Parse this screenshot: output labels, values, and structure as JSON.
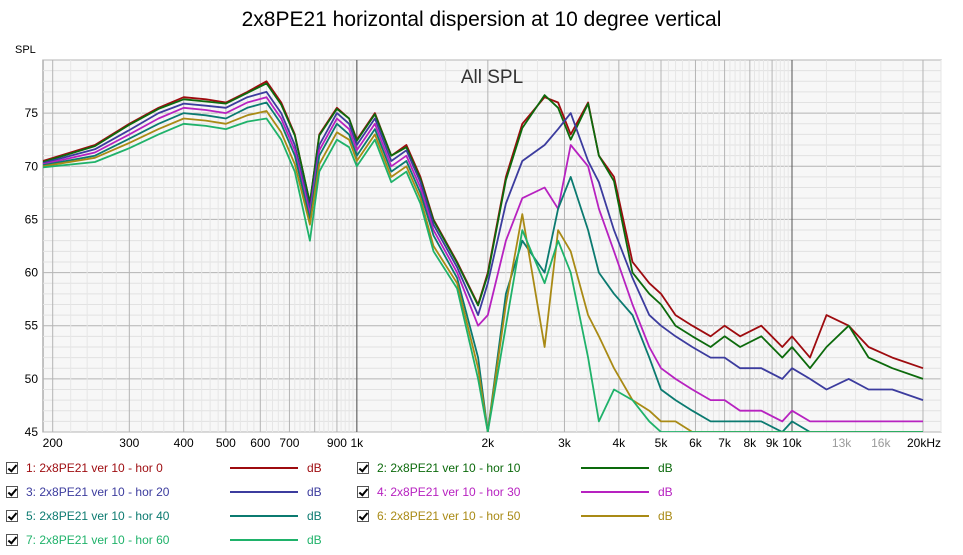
{
  "chart_data": {
    "type": "line",
    "title": "2x8PE21 horizontal dispersion at 10 degree vertical",
    "annotation": "All SPL",
    "ylabel": "SPL",
    "xunit": "Hz",
    "xscale": "log",
    "xlim": [
      190,
      22000
    ],
    "ylim": [
      45,
      80
    ],
    "grid": true,
    "legend_position": "bottom",
    "y_ticks": [
      45,
      50,
      55,
      60,
      65,
      70,
      75
    ],
    "x_tick_labels": [
      {
        "v": 200,
        "t": "200"
      },
      {
        "v": 300,
        "t": "300"
      },
      {
        "v": 400,
        "t": "400"
      },
      {
        "v": 500,
        "t": "500"
      },
      {
        "v": 600,
        "t": "600"
      },
      {
        "v": 700,
        "t": "700"
      },
      {
        "v": 900,
        "t": "900"
      },
      {
        "v": 1000,
        "t": "1k"
      },
      {
        "v": 2000,
        "t": "2k"
      },
      {
        "v": 3000,
        "t": "3k"
      },
      {
        "v": 4000,
        "t": "4k"
      },
      {
        "v": 5000,
        "t": "5k"
      },
      {
        "v": 6000,
        "t": "6k"
      },
      {
        "v": 7000,
        "t": "7k"
      },
      {
        "v": 8000,
        "t": "8k"
      },
      {
        "v": 9000,
        "t": "9k"
      },
      {
        "v": 10000,
        "t": "10k"
      },
      {
        "v": 13000,
        "t": "13k",
        "muted": true
      },
      {
        "v": 16000,
        "t": "16k",
        "muted": true
      },
      {
        "v": 20000,
        "t": "20kHz"
      }
    ],
    "series": [
      {
        "name": "1: 2x8PE21 ver 10 - hor 0",
        "unit": "dB",
        "color": "#9e0b0f",
        "x": [
          190,
          250,
          300,
          350,
          400,
          450,
          500,
          560,
          620,
          670,
          720,
          780,
          820,
          900,
          960,
          1000,
          1100,
          1200,
          1300,
          1400,
          1500,
          1700,
          1900,
          2000,
          2200,
          2400,
          2700,
          2900,
          3100,
          3400,
          3600,
          3900,
          4300,
          4700,
          5000,
          5400,
          5900,
          6500,
          7000,
          7600,
          8500,
          9500,
          10000,
          11000,
          12000,
          13500,
          15000,
          17000,
          20000
        ],
        "y": [
          70.5,
          72,
          74,
          75.5,
          76.5,
          76.3,
          76,
          77,
          78,
          76,
          73,
          66.5,
          73,
          75.5,
          74.5,
          72.5,
          75,
          71,
          72,
          69,
          65,
          61,
          57,
          60,
          69,
          74,
          76.5,
          76,
          73,
          76,
          71,
          69,
          61,
          59,
          58,
          56,
          55,
          54,
          55,
          54,
          55,
          53,
          54,
          52,
          56,
          55,
          53,
          52,
          51
        ]
      },
      {
        "name": "2: 2x8PE21 ver 10 - hor 10",
        "unit": "dB",
        "color": "#0c6a0c",
        "x": [
          190,
          250,
          300,
          350,
          400,
          450,
          500,
          560,
          620,
          670,
          720,
          780,
          820,
          900,
          960,
          1000,
          1100,
          1200,
          1300,
          1400,
          1500,
          1700,
          1900,
          2000,
          2200,
          2400,
          2700,
          2900,
          3100,
          3400,
          3600,
          3900,
          4300,
          4700,
          5000,
          5400,
          5900,
          6500,
          7000,
          7600,
          8500,
          9500,
          10000,
          11000,
          12000,
          13500,
          15000,
          17000,
          20000
        ],
        "y": [
          70.4,
          71.9,
          73.9,
          75.4,
          76.3,
          76.1,
          75.9,
          76.9,
          77.8,
          75.8,
          72.9,
          66.6,
          72.9,
          75.4,
          74.5,
          72.4,
          74.9,
          71,
          71.8,
          68.8,
          64.9,
          60.9,
          56.9,
          59.8,
          68.7,
          73.6,
          76.7,
          75.5,
          72.5,
          75.9,
          71,
          68.6,
          60,
          58,
          57,
          55,
          54,
          53,
          54,
          53,
          54,
          52,
          53,
          51,
          53,
          55,
          52,
          51,
          50
        ]
      },
      {
        "name": "3: 2x8PE21 ver 10 - hor 20",
        "unit": "dB",
        "color": "#3c3c9e",
        "x": [
          190,
          250,
          300,
          350,
          400,
          450,
          500,
          560,
          620,
          670,
          720,
          780,
          820,
          900,
          960,
          1000,
          1100,
          1200,
          1300,
          1400,
          1500,
          1700,
          1900,
          2000,
          2200,
          2400,
          2700,
          2900,
          3100,
          3400,
          3600,
          3900,
          4300,
          4700,
          5000,
          5400,
          5900,
          6500,
          7000,
          7600,
          8500,
          9500,
          10000,
          11000,
          12000,
          13500,
          15000,
          17000,
          20000
        ],
        "y": [
          70.3,
          71.6,
          73.4,
          75,
          75.9,
          75.7,
          75.5,
          76.5,
          77,
          75,
          72,
          66,
          72,
          75,
          74,
          72,
          74.5,
          70.5,
          71.5,
          68.5,
          64.5,
          60.5,
          56,
          59,
          66.5,
          70.5,
          72,
          73.5,
          75,
          70.5,
          68.5,
          64,
          59.5,
          56,
          55,
          54,
          53,
          52,
          52,
          51,
          51,
          50,
          51,
          50,
          49,
          50,
          49,
          49,
          48
        ]
      },
      {
        "name": "4: 2x8PE21 ver 10 - hor 30",
        "unit": "dB",
        "color": "#b722c0",
        "x": [
          190,
          250,
          300,
          350,
          400,
          450,
          500,
          560,
          620,
          670,
          720,
          780,
          820,
          900,
          960,
          1000,
          1100,
          1200,
          1300,
          1400,
          1500,
          1700,
          1900,
          2000,
          2200,
          2400,
          2700,
          2900,
          3100,
          3400,
          3600,
          3900,
          4300,
          4700,
          5000,
          5400,
          5900,
          6500,
          7000,
          7600,
          8500,
          9500,
          10000,
          11000,
          12000,
          13500,
          15000,
          17000,
          20000
        ],
        "y": [
          70.2,
          71.3,
          73,
          74.5,
          75.5,
          75.3,
          75,
          76,
          76.5,
          74.5,
          71.5,
          65.5,
          71.5,
          74.5,
          73.5,
          71.5,
          74,
          70,
          71,
          68,
          64,
          60,
          55,
          56,
          63,
          67,
          68,
          66,
          72,
          70,
          66,
          62,
          57,
          53,
          51,
          50,
          49,
          48,
          48,
          47,
          47,
          46,
          47,
          46,
          46,
          46,
          46,
          46,
          46
        ]
      },
      {
        "name": "5: 2x8PE21 ver 10 - hor 40",
        "unit": "dB",
        "color": "#0b7a70",
        "x": [
          190,
          250,
          300,
          350,
          400,
          450,
          500,
          560,
          620,
          670,
          720,
          780,
          820,
          900,
          960,
          1000,
          1100,
          1200,
          1300,
          1400,
          1500,
          1700,
          1900,
          2000,
          2200,
          2400,
          2700,
          2900,
          3100,
          3400,
          3600,
          3900,
          4300,
          4700,
          5000,
          5400,
          5900,
          6500,
          7000,
          7600,
          8500,
          9500,
          10000,
          11000,
          12000,
          13500,
          15000,
          17000,
          20000
        ],
        "y": [
          70.1,
          71,
          72.6,
          74,
          75,
          74.8,
          74.5,
          75.5,
          76,
          74,
          71,
          65,
          71,
          74,
          73,
          71,
          73.5,
          69.5,
          70.5,
          67.5,
          63.5,
          59.5,
          52,
          45,
          58,
          63,
          60,
          66,
          69,
          64,
          60,
          58,
          56,
          52,
          49,
          48,
          47,
          46,
          46,
          46,
          46,
          45,
          46,
          45,
          45,
          45,
          45,
          45,
          45
        ]
      },
      {
        "name": "6: 2x8PE21 ver 10 - hor 50",
        "unit": "dB",
        "color": "#a98a15",
        "x": [
          190,
          250,
          300,
          350,
          400,
          450,
          500,
          560,
          620,
          670,
          720,
          780,
          820,
          900,
          960,
          1000,
          1100,
          1200,
          1300,
          1400,
          1500,
          1700,
          1900,
          2000,
          2200,
          2400,
          2700,
          2900,
          3100,
          3400,
          3600,
          3900,
          4300,
          4700,
          5000,
          5400,
          5900,
          6500,
          7000,
          7600,
          8500,
          9500,
          10000,
          11000,
          12000,
          13500,
          15000,
          17000,
          20000
        ],
        "y": [
          70,
          70.8,
          72.2,
          73.5,
          74.5,
          74.3,
          74,
          74.8,
          75.2,
          73.2,
          70.2,
          64.5,
          70.2,
          73.2,
          72.5,
          70.5,
          73,
          69,
          70,
          67,
          62.5,
          59,
          51,
          45,
          57,
          65.5,
          53,
          64,
          62,
          56,
          54,
          51,
          48,
          47,
          46,
          46,
          45,
          45,
          45,
          45,
          45,
          45,
          45,
          45,
          45,
          45,
          45,
          45,
          45
        ]
      },
      {
        "name": "7: 2x8PE21 ver 10 - hor 60",
        "unit": "dB",
        "color": "#1fb26a",
        "x": [
          190,
          250,
          300,
          350,
          400,
          450,
          500,
          560,
          620,
          670,
          720,
          780,
          820,
          900,
          960,
          1000,
          1100,
          1200,
          1300,
          1400,
          1500,
          1700,
          1900,
          2000,
          2200,
          2400,
          2700,
          2900,
          3100,
          3400,
          3600,
          3900,
          4300,
          4700,
          5000,
          5400,
          5900,
          6500,
          7000,
          7600,
          8500,
          9500,
          10000,
          11000,
          12000,
          13500,
          15000,
          17000,
          20000
        ],
        "y": [
          69.9,
          70.4,
          71.7,
          73,
          74,
          73.8,
          73.5,
          74.2,
          74.5,
          72.5,
          69.5,
          63,
          69.5,
          72.5,
          71.8,
          70,
          72.5,
          68.5,
          69.5,
          66.5,
          62,
          58.5,
          50,
          45,
          55,
          64,
          59,
          63,
          60,
          52,
          46,
          49,
          48,
          46,
          45,
          45,
          45,
          45,
          45,
          45,
          45,
          45,
          45,
          45,
          45,
          45,
          45,
          45,
          45
        ]
      }
    ]
  }
}
